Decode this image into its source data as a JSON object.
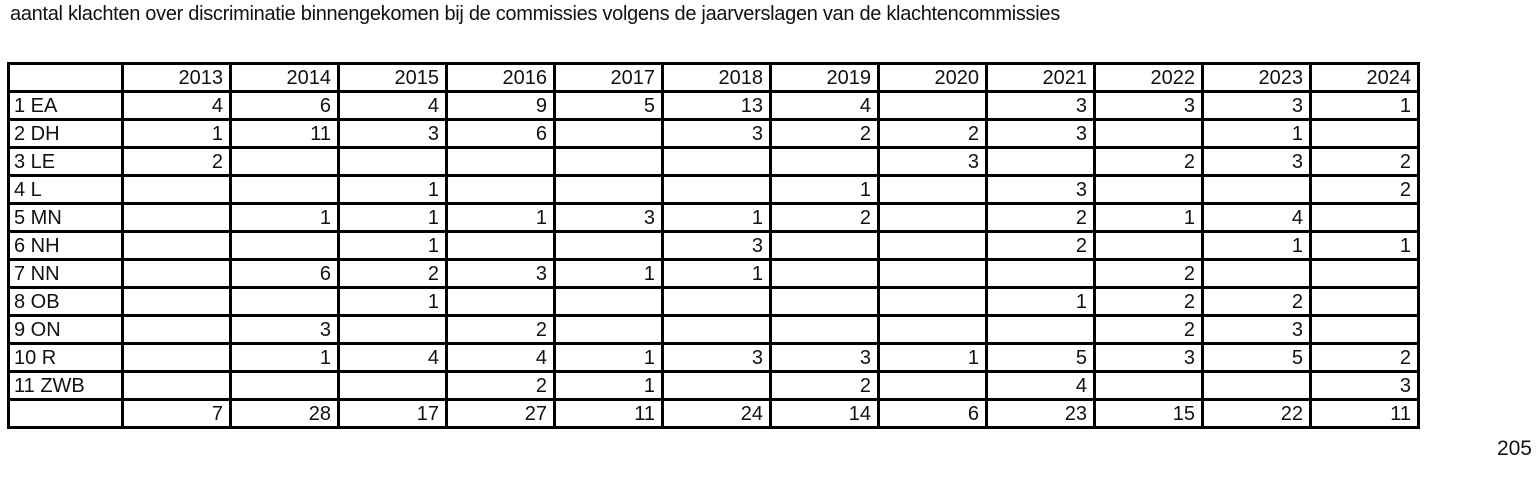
{
  "chart_data": {
    "type": "table",
    "title": "aantal klachten over discriminatie binnengekomen bij de commissies volgens de jaarverslagen van de klachtencommissies",
    "categories": [
      "2013",
      "2014",
      "2015",
      "2016",
      "2017",
      "2018",
      "2019",
      "2020",
      "2021",
      "2022",
      "2023",
      "2024"
    ],
    "rows": [
      {
        "label": "1 EA",
        "values": [
          "4",
          "6",
          "4",
          "9",
          "5",
          "13",
          "4",
          "",
          "3",
          "3",
          "3",
          "1"
        ]
      },
      {
        "label": "2 DH",
        "values": [
          "1",
          "11",
          "3",
          "6",
          "",
          "3",
          "2",
          "2",
          "3",
          "",
          "1",
          ""
        ]
      },
      {
        "label": "3 LE",
        "values": [
          "2",
          "",
          "",
          "",
          "",
          "",
          "",
          "3",
          "",
          "2",
          "3",
          "2"
        ]
      },
      {
        "label": "4 L",
        "values": [
          "",
          "",
          "1",
          "",
          "",
          "",
          "1",
          "",
          "3",
          "",
          "",
          "2"
        ]
      },
      {
        "label": "5 MN",
        "values": [
          "",
          "1",
          "1",
          "1",
          "3",
          "1",
          "2",
          "",
          "2",
          "1",
          "4",
          ""
        ]
      },
      {
        "label": "6 NH",
        "values": [
          "",
          "",
          "1",
          "",
          "",
          "3",
          "",
          "",
          "2",
          "",
          "1",
          "1"
        ]
      },
      {
        "label": "7 NN",
        "values": [
          "",
          "6",
          "2",
          "3",
          "1",
          "1",
          "",
          "",
          "",
          "2",
          "",
          ""
        ]
      },
      {
        "label": "8 OB",
        "values": [
          "",
          "",
          "1",
          "",
          "",
          "",
          "",
          "",
          "1",
          "2",
          "2",
          ""
        ]
      },
      {
        "label": "9 ON",
        "values": [
          "",
          "3",
          "",
          "2",
          "",
          "",
          "",
          "",
          "",
          "2",
          "3",
          ""
        ]
      },
      {
        "label": "10 R",
        "values": [
          "",
          "1",
          "4",
          "4",
          "1",
          "3",
          "3",
          "1",
          "5",
          "3",
          "5",
          "2"
        ]
      },
      {
        "label": "11 ZWB",
        "values": [
          "",
          "",
          "",
          "2",
          "1",
          "",
          "2",
          "",
          "4",
          "",
          "",
          "3"
        ]
      }
    ],
    "totals": [
      "7",
      "28",
      "17",
      "27",
      "11",
      "24",
      "14",
      "6",
      "23",
      "15",
      "22",
      "11"
    ],
    "grand_total": "205",
    "layout": {
      "legend": "none",
      "grid": "on",
      "border_color": "#000000",
      "background_color": "#ffffff",
      "text_color": "#111111"
    }
  }
}
